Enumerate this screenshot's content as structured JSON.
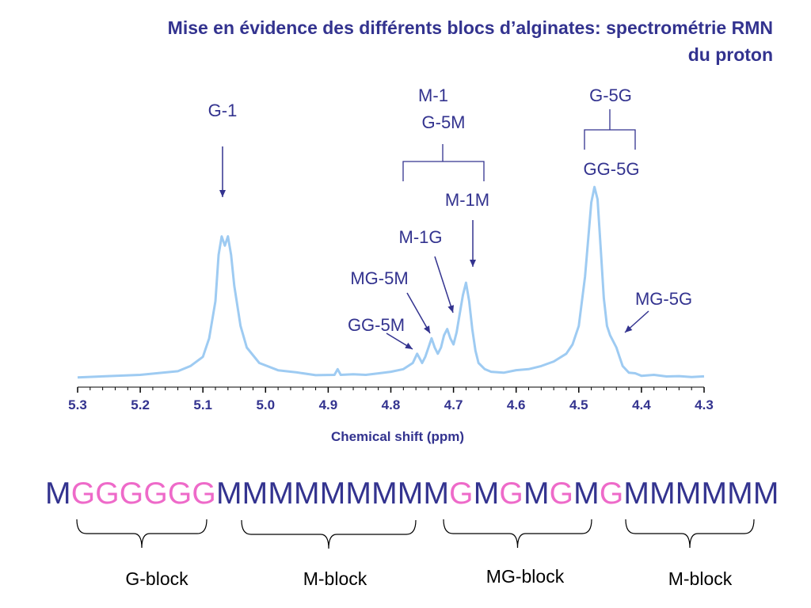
{
  "title_line1": "Mise en évidence des différents blocs d’alginates: spectrométrie RMN",
  "title_line2": "du proton",
  "colors": {
    "spectrum": "#9ecbf2",
    "text": "#33338f",
    "g_residue": "#ee6ac9",
    "m_residue": "#33338f"
  },
  "chart_data": {
    "type": "line",
    "xlabel": "Chemical shift (ppm)",
    "xlim": [
      5.3,
      4.3
    ],
    "x_reversed": true,
    "xticks": [
      "5.3",
      "5.2",
      "5.1",
      "5.0",
      "4.9",
      "4.8",
      "4.7",
      "4.6",
      "4.5",
      "4.4",
      "4.3"
    ],
    "grid": false,
    "ylabel": "",
    "series": [
      {
        "x": [
          5.3,
          5.2,
          5.14,
          5.12,
          5.1,
          5.09,
          5.08,
          5.075,
          5.07,
          5.065,
          5.06,
          5.055,
          5.05,
          5.04,
          5.03,
          5.01,
          4.98,
          4.95,
          4.92,
          4.89,
          4.885,
          4.88,
          4.86,
          4.84,
          4.82,
          4.8,
          4.78,
          4.765,
          4.758,
          4.75,
          4.745,
          4.74,
          4.735,
          4.73,
          4.725,
          4.72,
          4.715,
          4.71,
          4.705,
          4.7,
          4.695,
          4.69,
          4.685,
          4.68,
          4.675,
          4.67,
          4.665,
          4.66,
          4.65,
          4.64,
          4.62,
          4.6,
          4.58,
          4.56,
          4.54,
          4.52,
          4.51,
          4.5,
          4.49,
          4.48,
          4.475,
          4.47,
          4.465,
          4.46,
          4.455,
          4.45,
          4.445,
          4.44,
          4.435,
          4.43,
          4.42,
          4.41,
          4.4,
          4.38,
          4.36,
          4.34,
          4.32,
          4.3
        ],
        "y": [
          0.5,
          1.0,
          2.5,
          4.0,
          7.0,
          13.0,
          25.0,
          40.0,
          46.0,
          43.0,
          46.0,
          40.0,
          30.0,
          17.0,
          10.0,
          5.0,
          2.8,
          1.8,
          1.2,
          1.0,
          3.0,
          1.0,
          1.5,
          1.0,
          1.8,
          2.0,
          3.0,
          5.0,
          8.0,
          5.0,
          7.0,
          10.0,
          13.0,
          10.0,
          8.0,
          10.0,
          14.0,
          16.0,
          13.0,
          11.0,
          15.0,
          21.0,
          27.0,
          31.0,
          25.0,
          16.0,
          9.0,
          5.0,
          3.0,
          2.0,
          2.0,
          2.5,
          3.0,
          4.0,
          5.5,
          8.0,
          11.0,
          17.0,
          33.0,
          57.0,
          62.0,
          58.0,
          42.0,
          26.0,
          17.0,
          14.0,
          12.0,
          10.0,
          7.0,
          4.0,
          2.0,
          1.5,
          1.0,
          1.0,
          0.8,
          0.6,
          0.6,
          0.5
        ]
      }
    ],
    "annotations": [
      {
        "id": "g1",
        "label": "G-1"
      },
      {
        "id": "m1",
        "label": "M-1"
      },
      {
        "id": "g5m",
        "label": "G-5M"
      },
      {
        "id": "g5g",
        "label": "G-5G"
      },
      {
        "id": "gg5g",
        "label": "GG-5G"
      },
      {
        "id": "m1m",
        "label": "M-1M"
      },
      {
        "id": "m1g",
        "label": "M-1G"
      },
      {
        "id": "mg5m",
        "label": "MG-5M"
      },
      {
        "id": "gg5m",
        "label": "GG-5M"
      },
      {
        "id": "mg5g",
        "label": "MG-5G"
      }
    ]
  },
  "sequence": [
    "M",
    "G",
    "G",
    "G",
    "G",
    "G",
    "G",
    "M",
    "M",
    "M",
    "M",
    "M",
    "M",
    "M",
    "M",
    "M",
    "G",
    "M",
    "G",
    "M",
    "G",
    "M",
    "G",
    "M",
    "M",
    "M",
    "M",
    "M",
    "M"
  ],
  "blocks": [
    {
      "label": "G-block"
    },
    {
      "label": "M-block"
    },
    {
      "label": "MG-block"
    },
    {
      "label": "M-block"
    }
  ]
}
